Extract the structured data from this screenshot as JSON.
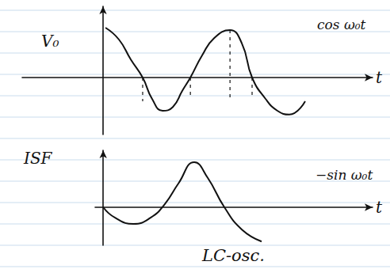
{
  "chart_data": [
    {
      "type": "line",
      "ylabel": "V₀",
      "xlabel": "t",
      "annotations": [
        "cos ω₀t"
      ],
      "x": [
        0.09,
        0.59,
        1.03,
        1.47,
        1.82,
        2.21,
        2.59,
        2.94,
        3.24,
        3.68,
        4.12,
        4.71,
        5.15,
        5.53,
        6.03,
        6.47,
        6.91,
        7.5
      ],
      "values": [
        1.05,
        0.8,
        0.38,
        0,
        -0.45,
        -0.7,
        -0.62,
        -0.28,
        0,
        0.47,
        0.83,
        1.0,
        0.72,
        0,
        -0.45,
        -0.7,
        -0.78,
        -0.5
      ],
      "color": "#111111",
      "marker": "none",
      "line_style": "solid",
      "guides": [
        {
          "x": 1.47,
          "y": [
            0,
            -0.5
          ]
        },
        {
          "x": 3.24,
          "y": [
            0,
            -0.45
          ]
        },
        {
          "x": 4.71,
          "y": [
            1.0,
            -0.45
          ]
        },
        {
          "x": 5.53,
          "y": [
            0,
            -0.45
          ]
        }
      ],
      "xlim": [
        -3,
        10
      ],
      "ylim": [
        -1.2,
        1.5
      ],
      "grid": false,
      "tick_labels": false
    },
    {
      "type": "line",
      "ylabel": "ISF",
      "xlabel": "t",
      "annotations": [
        "−sin ω₀t"
      ],
      "x": [
        0,
        0.44,
        1.12,
        1.76,
        2.29,
        2.79,
        3.38,
        3.88,
        4.5,
        5.15,
        5.88
      ],
      "values": [
        0,
        -0.22,
        -0.35,
        -0.22,
        0.07,
        0.5,
        0.95,
        0.62,
        0,
        -0.47,
        -0.72
      ],
      "color": "#111111",
      "marker": "none",
      "line_style": "solid",
      "xlim": [
        -0.3,
        10
      ],
      "ylim": [
        -0.8,
        1.2
      ],
      "grid": false,
      "tick_labels": false
    }
  ],
  "caption": "LC-osc."
}
